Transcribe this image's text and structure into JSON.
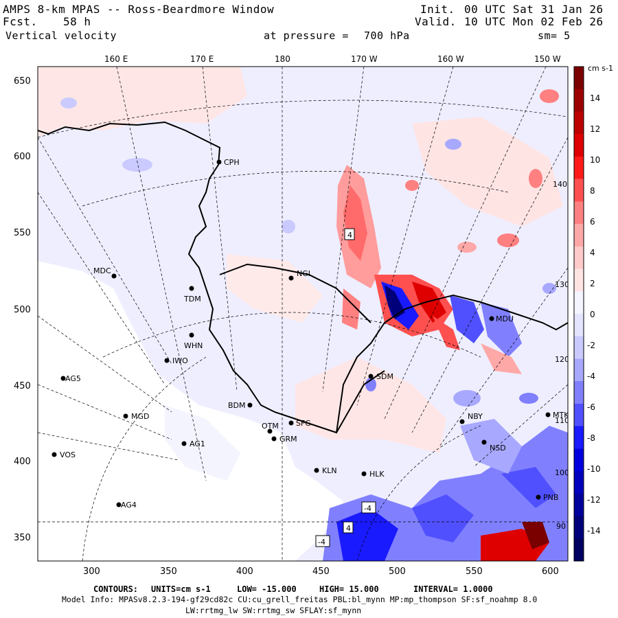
{
  "header": {
    "title": "AMPS 8-km MPAS -- Ross-Beardmore Window",
    "fcst_label": "Fcst.",
    "fcst_value": "58 h",
    "field": "Vertical velocity",
    "init_label": "Init.",
    "init_value": "00 UTC Sat 31 Jan 26",
    "valid_label": "Valid.",
    "valid_value": "10 UTC Mon 02 Feb 26",
    "pressure_label": "at pressure =",
    "pressure_value": "700 hPa",
    "smoothing": "sm= 5"
  },
  "top_longitudes": [
    "160 E",
    "170 E",
    "180",
    "170 W",
    "160 W",
    "150 W"
  ],
  "y_ticks": [
    "650",
    "600",
    "550",
    "500",
    "450",
    "400",
    "350"
  ],
  "x_ticks": [
    "300",
    "350",
    "400",
    "450",
    "500",
    "550",
    "600"
  ],
  "overlay_longitudes": [
    "140 W",
    "130 W",
    "120 W",
    "110 W",
    "100 W",
    "90 W"
  ],
  "colorbar": {
    "unit": "cm s-1",
    "labels": [
      "14",
      "12",
      "10",
      "8",
      "6",
      "4",
      "2",
      "0",
      "-2",
      "-4",
      "-6",
      "-8",
      "-10",
      "-12",
      "-14"
    ],
    "colors": [
      "#7a0000",
      "#9c0000",
      "#bd0000",
      "#de0000",
      "#ff1a1a",
      "#ff5050",
      "#ff8080",
      "#ffa8a8",
      "#ffcaca",
      "#ffe4e4",
      "#f5f5ff",
      "#e4e4ff",
      "#cacaff",
      "#a8a8ff",
      "#8080ff",
      "#5050ff",
      "#1a1aff",
      "#0000de",
      "#0000bd",
      "#00009c",
      "#00007a",
      "#000060"
    ]
  },
  "stations": [
    {
      "code": "CPH"
    },
    {
      "code": "MDC"
    },
    {
      "code": "NGL"
    },
    {
      "code": "TDM"
    },
    {
      "code": "WHN"
    },
    {
      "code": "IWO"
    },
    {
      "code": "AG5"
    },
    {
      "code": "SDM"
    },
    {
      "code": "BDM"
    },
    {
      "code": "MGD"
    },
    {
      "code": "OTM"
    },
    {
      "code": "SFG"
    },
    {
      "code": "GRM"
    },
    {
      "code": "NBY"
    },
    {
      "code": "MTK"
    },
    {
      "code": "AG1"
    },
    {
      "code": "NSD"
    },
    {
      "code": "VOS"
    },
    {
      "code": "KLN"
    },
    {
      "code": "HLK"
    },
    {
      "code": "PNB"
    },
    {
      "code": "AG4"
    },
    {
      "code": "MDU"
    }
  ],
  "box_labels": [
    "4",
    "4",
    "-4",
    "-4"
  ],
  "footer": {
    "contours_label": "CONTOURS:",
    "units": "UNITS=cm s-1",
    "low": "LOW= -15.000",
    "high": "HIGH= 15.000",
    "interval": "INTERVAL= 1.0000",
    "model_info": "Model Info: MPASv8.2.3-194-gf29cd82c CU:cu_grell_freitas PBL:bl_mynn MP:mp_thompson SF:sf_noahmp 8.0",
    "model_info2": "LW:rrtmg_lw SW:rrtmg_sw SFLAY:sf_mynn"
  }
}
